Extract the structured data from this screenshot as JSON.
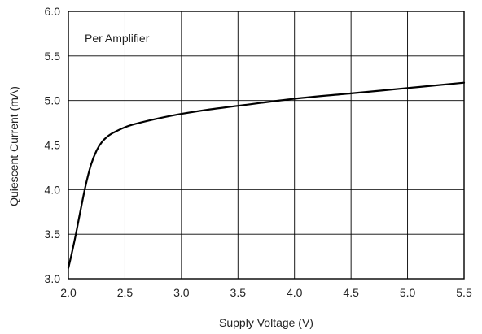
{
  "chart_data": {
    "type": "line",
    "title": "",
    "xlabel": "Supply Voltage (V)",
    "ylabel": "Quiescent Current (mA)",
    "annotation": "Per Amplifier",
    "xlim": [
      2.0,
      5.5
    ],
    "ylim": [
      3.0,
      6.0
    ],
    "grid": true,
    "x_ticks": [
      "2.0",
      "2.5",
      "3.0",
      "3.5",
      "4.0",
      "4.5",
      "5.0",
      "5.5"
    ],
    "y_ticks": [
      "3.0",
      "3.5",
      "4.0",
      "4.5",
      "5.0",
      "5.5",
      "6.0"
    ],
    "line_color": "#000000",
    "grid_color": "#000000",
    "series": [
      {
        "x": [
          2.0,
          2.05,
          2.1,
          2.15,
          2.2,
          2.25,
          2.3,
          2.35,
          2.4,
          2.5,
          2.6,
          2.8,
          3.0,
          3.25,
          3.5,
          4.0,
          4.5,
          5.0,
          5.5
        ],
        "values": [
          3.12,
          3.4,
          3.72,
          4.03,
          4.28,
          4.44,
          4.54,
          4.6,
          4.64,
          4.7,
          4.74,
          4.8,
          4.85,
          4.9,
          4.94,
          5.02,
          5.08,
          5.14,
          5.2
        ]
      }
    ]
  }
}
